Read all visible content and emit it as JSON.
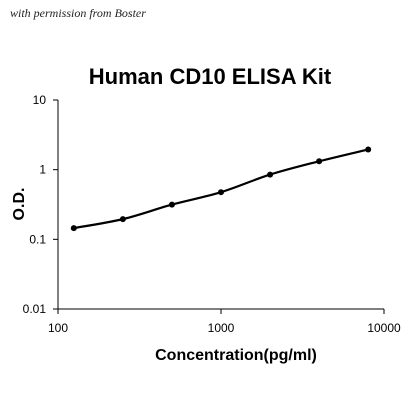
{
  "watermark": "with permission from Boster",
  "chart_data": {
    "type": "line",
    "title": "Human CD10 ELISA Kit",
    "xlabel": "Concentration(pg/ml)",
    "ylabel": "O.D.",
    "xscale": "log",
    "yscale": "log",
    "xlim": [
      100,
      10000
    ],
    "ylim": [
      0.01,
      10
    ],
    "x_ticks": [
      "100",
      "1000",
      "10000"
    ],
    "y_ticks": [
      "0.01",
      "0.1",
      "1",
      "10"
    ],
    "grid": false,
    "legend": "none",
    "series": [
      {
        "x": [
          125,
          250,
          500,
          1000,
          2000,
          4000,
          8000
        ],
        "y": [
          0.145,
          0.195,
          0.315,
          0.475,
          0.85,
          1.32,
          1.95
        ],
        "color": "#000000"
      }
    ]
  }
}
